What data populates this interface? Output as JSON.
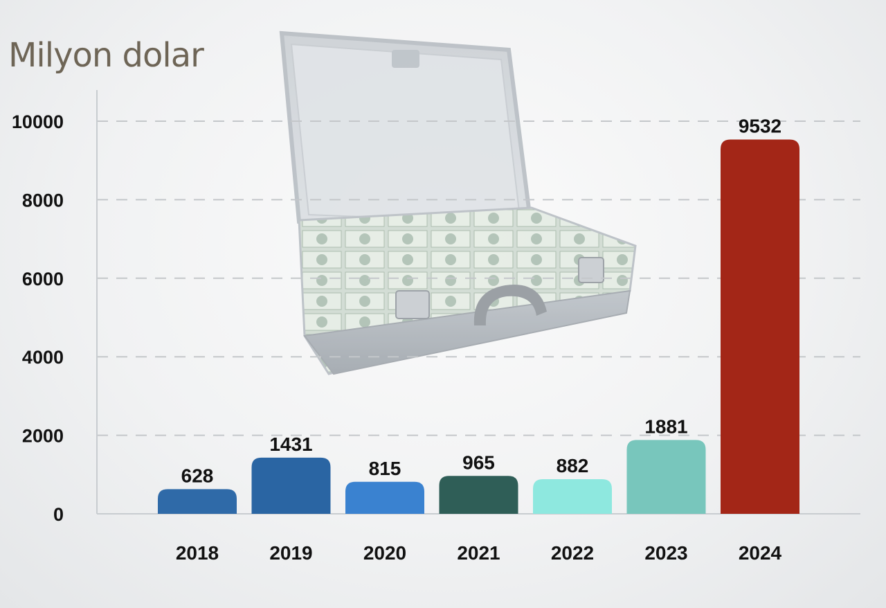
{
  "chart_data": {
    "type": "bar",
    "title": "Milyon dolar",
    "xlabel": "",
    "ylabel": "",
    "categories": [
      "2018",
      "2019",
      "2020",
      "2021",
      "2022",
      "2023",
      "2024"
    ],
    "values": [
      628,
      1431,
      815,
      965,
      882,
      1881,
      9532
    ],
    "bar_colors": [
      "#2f6aa8",
      "#2a65a3",
      "#3a82d0",
      "#2f5e57",
      "#8ee8df",
      "#78c6bc",
      "#a32617"
    ],
    "yticks": [
      0,
      2000,
      4000,
      6000,
      8000,
      10000
    ],
    "ylim": [
      0,
      10000
    ],
    "grid": true,
    "legend": "none",
    "background_image": "briefcase-full-of-money"
  }
}
